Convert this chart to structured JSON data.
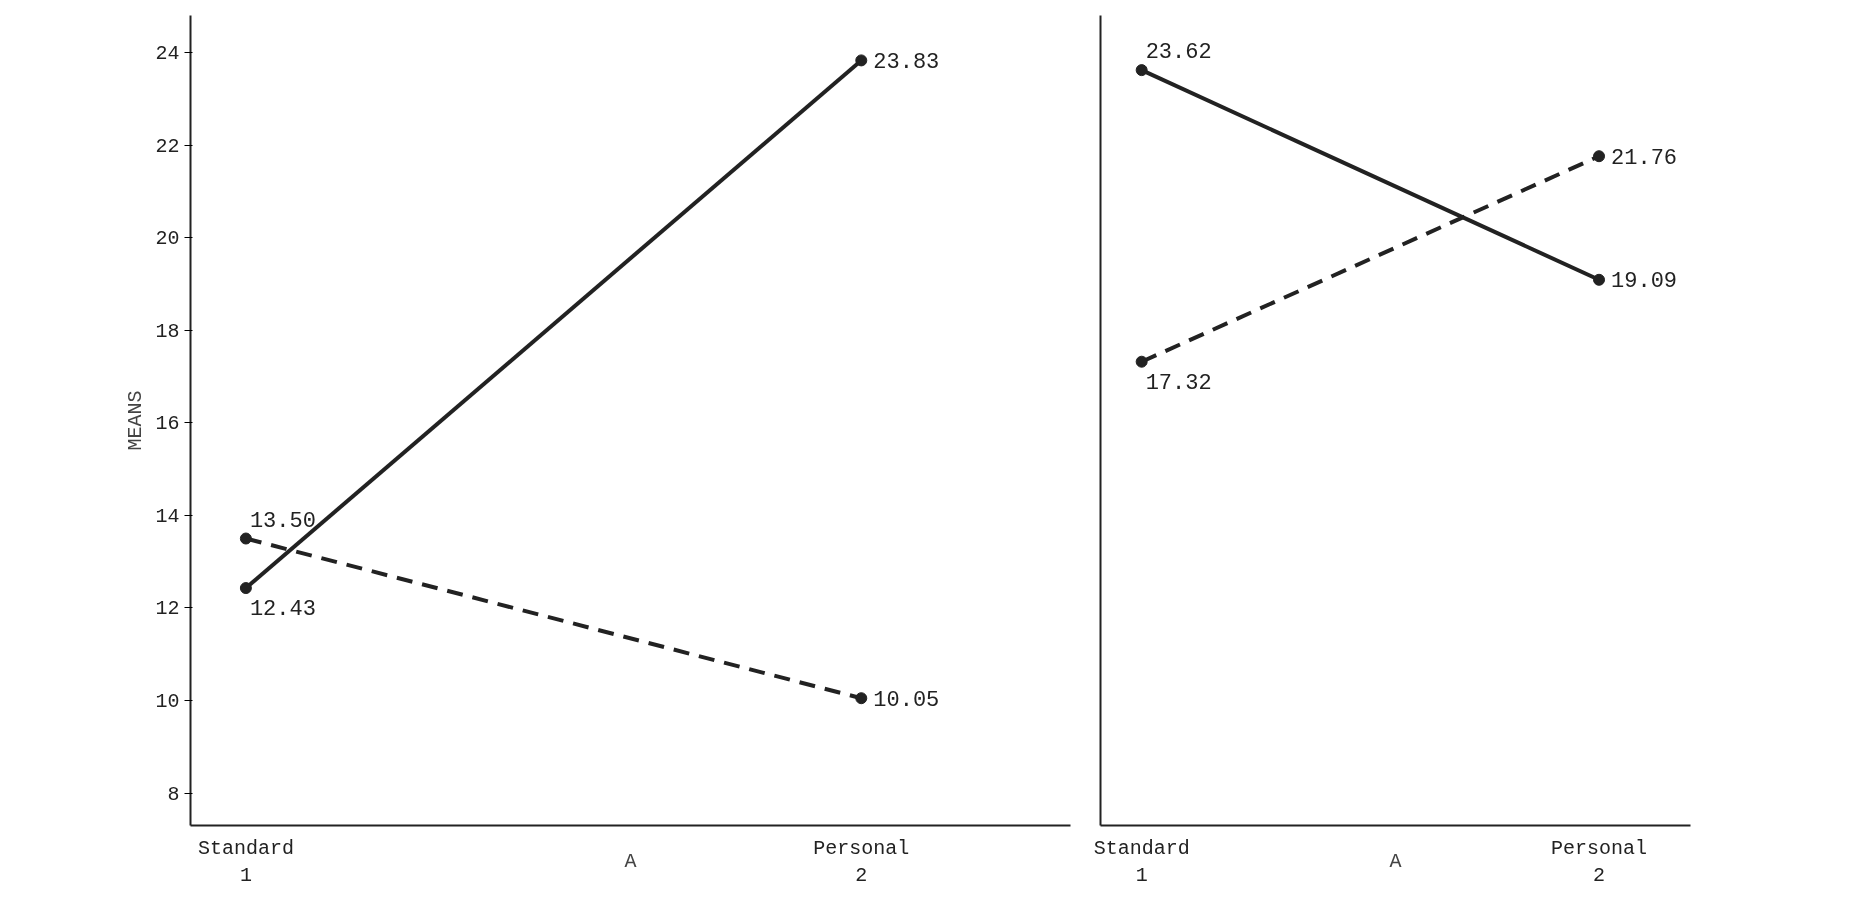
{
  "chart_data": [
    {
      "type": "line",
      "categories": [
        "Standard\n1",
        "Personal\n2"
      ],
      "xlabel": "A",
      "ylabel": "MEANS",
      "ylim": [
        7.3,
        24.8
      ],
      "yticks": [
        8,
        10,
        12,
        14,
        16,
        18,
        20,
        22,
        24
      ],
      "grid": false,
      "marker": "circle",
      "series": [
        {
          "color": "#222222",
          "line_style": "solid",
          "values": [
            12.43,
            23.83
          ],
          "value_labels": [
            "12.43",
            "23.83"
          ]
        },
        {
          "color": "#222222",
          "line_style": "dashed",
          "values": [
            13.5,
            10.05
          ],
          "value_labels": [
            "13.50",
            "10.05"
          ]
        }
      ]
    },
    {
      "type": "line",
      "categories": [
        "Standard\n1",
        "Personal\n2"
      ],
      "xlabel": "A",
      "ylim": [
        7.3,
        24.8
      ],
      "yticks": [
        8,
        10,
        12,
        14,
        16,
        18,
        20,
        22,
        24
      ],
      "tick_labels": "x",
      "grid": false,
      "marker": "circle",
      "series": [
        {
          "color": "#222222",
          "line_style": "solid",
          "values": [
            23.62,
            19.09
          ],
          "value_labels": [
            "23.62",
            "19.09"
          ]
        },
        {
          "color": "#222222",
          "line_style": "dashed",
          "values": [
            17.32,
            21.76
          ],
          "value_labels": [
            "17.32",
            "21.76"
          ]
        }
      ]
    }
  ]
}
